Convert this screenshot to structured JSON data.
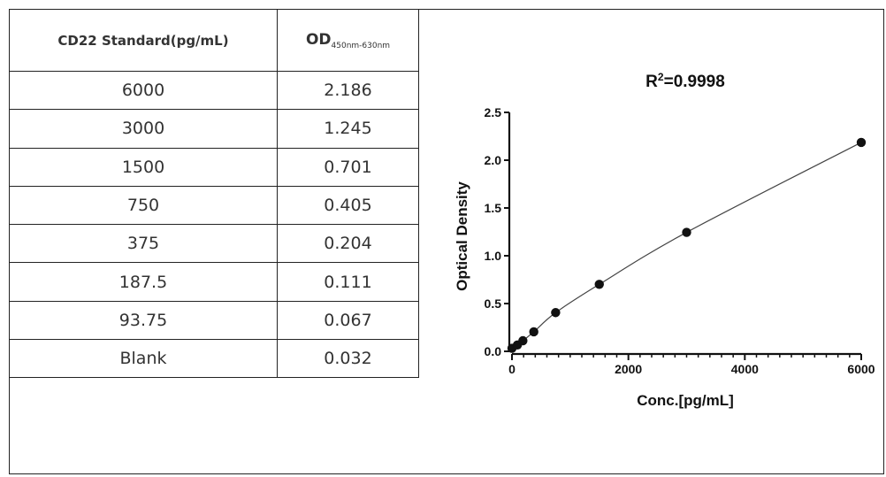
{
  "table": {
    "header_col1": "CD22 Standard(pg/mL)",
    "header_col2_main": "OD",
    "header_col2_sub": "450nm-630nm",
    "rows": [
      {
        "conc": "6000",
        "od": "2.186"
      },
      {
        "conc": "3000",
        "od": "1.245"
      },
      {
        "conc": "1500",
        "od": "0.701"
      },
      {
        "conc": "750",
        "od": "0.405"
      },
      {
        "conc": "375",
        "od": "0.204"
      },
      {
        "conc": "187.5",
        "od": "0.111"
      },
      {
        "conc": "93.75",
        "od": "0.067"
      },
      {
        "conc": "Blank",
        "od": "0.032"
      }
    ]
  },
  "chart_data": {
    "type": "scatter",
    "title_main": "R",
    "title_sup": "2",
    "title_rest": "=0.9998",
    "xlabel": "Conc.[pg/mL]",
    "ylabel": "Optical Density",
    "xlim": [
      0,
      6000
    ],
    "ylim": [
      0,
      2.5
    ],
    "xticks": [
      0,
      2000,
      4000,
      6000
    ],
    "yticks": [
      0.0,
      0.5,
      1.0,
      1.5,
      2.0,
      2.5
    ],
    "ytick_labels": [
      "0.0",
      "0.5",
      "1.0",
      "1.5",
      "2.0",
      "2.5"
    ],
    "grid": false,
    "fit_curve": true,
    "points": [
      {
        "x": 0,
        "y": 0.032
      },
      {
        "x": 93.75,
        "y": 0.067
      },
      {
        "x": 187.5,
        "y": 0.111
      },
      {
        "x": 375,
        "y": 0.204
      },
      {
        "x": 750,
        "y": 0.405
      },
      {
        "x": 1500,
        "y": 0.701
      },
      {
        "x": 3000,
        "y": 1.245
      },
      {
        "x": 6000,
        "y": 2.186
      }
    ]
  }
}
